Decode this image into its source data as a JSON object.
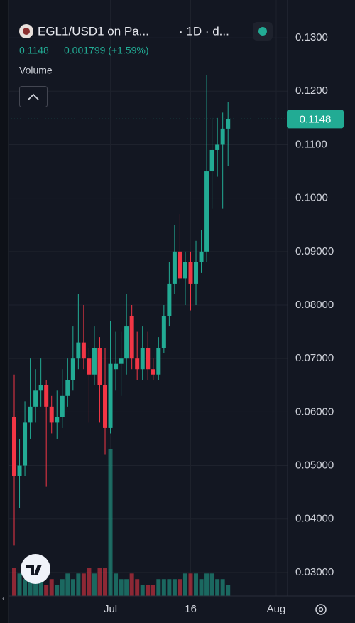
{
  "header": {
    "symbol": "EGL1/USD1 on Pa...",
    "interval": "· 1D · d...",
    "change": "0.001799 (+1.59%)",
    "volume_label": "Volume"
  },
  "chart_data": {
    "type": "candlestick",
    "categories": [
      null,
      null,
      null,
      null,
      null,
      null,
      null,
      null,
      null,
      null,
      null,
      null,
      null,
      null,
      null,
      null,
      null,
      null,
      "Jul",
      null,
      null,
      null,
      null,
      null,
      null,
      null,
      null,
      null,
      null,
      null,
      null,
      null,
      null,
      "16",
      null,
      null,
      null,
      null,
      null,
      null,
      null,
      null,
      null,
      null,
      null,
      null,
      null,
      null,
      null,
      "Aug",
      null
    ],
    "open": [
      0.059,
      0.048,
      0.05,
      0.058,
      0.061,
      0.064,
      0.065,
      0.061,
      0.058,
      0.059,
      0.063,
      0.066,
      0.07,
      0.073,
      0.07,
      0.067,
      0.072,
      0.065,
      0.057,
      0.068,
      0.069,
      0.07,
      0.078,
      0.07,
      0.068,
      0.072,
      0.068,
      0.067,
      0.072,
      0.078,
      0.084,
      0.09,
      0.085,
      0.088,
      0.084,
      0.088,
      0.09,
      0.105,
      0.109,
      0.11,
      0.113,
      null,
      null,
      null,
      null,
      null,
      null,
      null,
      null,
      null,
      null
    ],
    "high": [
      0.067,
      0.055,
      0.062,
      0.07,
      0.068,
      0.07,
      0.066,
      0.063,
      0.064,
      0.068,
      0.07,
      0.076,
      0.082,
      0.08,
      0.072,
      0.076,
      0.074,
      0.072,
      0.077,
      0.075,
      0.075,
      0.082,
      0.08,
      0.075,
      0.076,
      0.075,
      0.07,
      0.074,
      0.08,
      0.088,
      0.095,
      0.097,
      0.09,
      0.09,
      0.092,
      0.094,
      0.123,
      0.115,
      0.115,
      0.116,
      0.118,
      null,
      null,
      null,
      null,
      null,
      null,
      null,
      null,
      null,
      null
    ],
    "low": [
      0.035,
      0.042,
      0.048,
      0.055,
      0.058,
      0.061,
      0.046,
      0.056,
      0.055,
      0.057,
      0.061,
      0.064,
      0.068,
      0.068,
      0.058,
      0.065,
      0.058,
      0.052,
      0.056,
      0.064,
      0.063,
      0.067,
      0.068,
      0.066,
      0.066,
      0.066,
      0.066,
      0.066,
      0.071,
      0.076,
      0.082,
      0.084,
      0.08,
      0.079,
      0.08,
      0.086,
      0.088,
      0.098,
      0.104,
      0.098,
      0.106,
      null,
      null,
      null,
      null,
      null,
      null,
      null,
      null,
      null,
      null
    ],
    "close": [
      0.048,
      0.05,
      0.058,
      0.061,
      0.064,
      0.065,
      0.061,
      0.058,
      0.059,
      0.063,
      0.066,
      0.07,
      0.073,
      0.07,
      0.067,
      0.072,
      0.065,
      0.057,
      0.069,
      0.069,
      0.07,
      0.076,
      0.07,
      0.068,
      0.072,
      0.068,
      0.067,
      0.072,
      0.078,
      0.084,
      0.09,
      0.085,
      0.088,
      0.084,
      0.088,
      0.09,
      0.105,
      0.109,
      0.11,
      0.113,
      0.1148,
      null,
      null,
      null,
      null,
      null,
      null,
      null,
      null,
      null,
      null
    ],
    "volume": [
      5,
      4,
      3,
      4,
      4,
      3,
      2,
      3,
      2,
      3,
      4,
      3,
      4,
      4,
      5,
      4,
      5,
      5,
      26,
      4,
      3,
      3,
      4,
      3,
      2,
      2,
      2,
      3,
      3,
      3,
      3,
      3,
      4,
      4,
      4,
      3,
      4,
      4,
      3,
      3,
      2,
      null,
      null,
      null,
      null,
      null,
      null,
      null,
      null,
      null,
      null
    ],
    "ylim": [
      0.0256,
      0.1344
    ],
    "yticks": [
      {
        "value": 0.03,
        "label": "0.03000"
      },
      {
        "value": 0.04,
        "label": "0.04000"
      },
      {
        "value": 0.05,
        "label": "0.05000"
      },
      {
        "value": 0.06,
        "label": "0.06000"
      },
      {
        "value": 0.07,
        "label": "0.07000"
      },
      {
        "value": 0.08,
        "label": "0.08000"
      },
      {
        "value": 0.09,
        "label": "0.09000"
      },
      {
        "value": 0.1,
        "label": "0.1000"
      },
      {
        "value": 0.11,
        "label": "0.1100"
      },
      {
        "value": 0.12,
        "label": "0.1200"
      },
      {
        "value": 0.13,
        "label": "0.1300"
      }
    ],
    "last_price": 0.1148,
    "up_color": "#22ab94",
    "down_color": "#f23645",
    "grid": true
  }
}
